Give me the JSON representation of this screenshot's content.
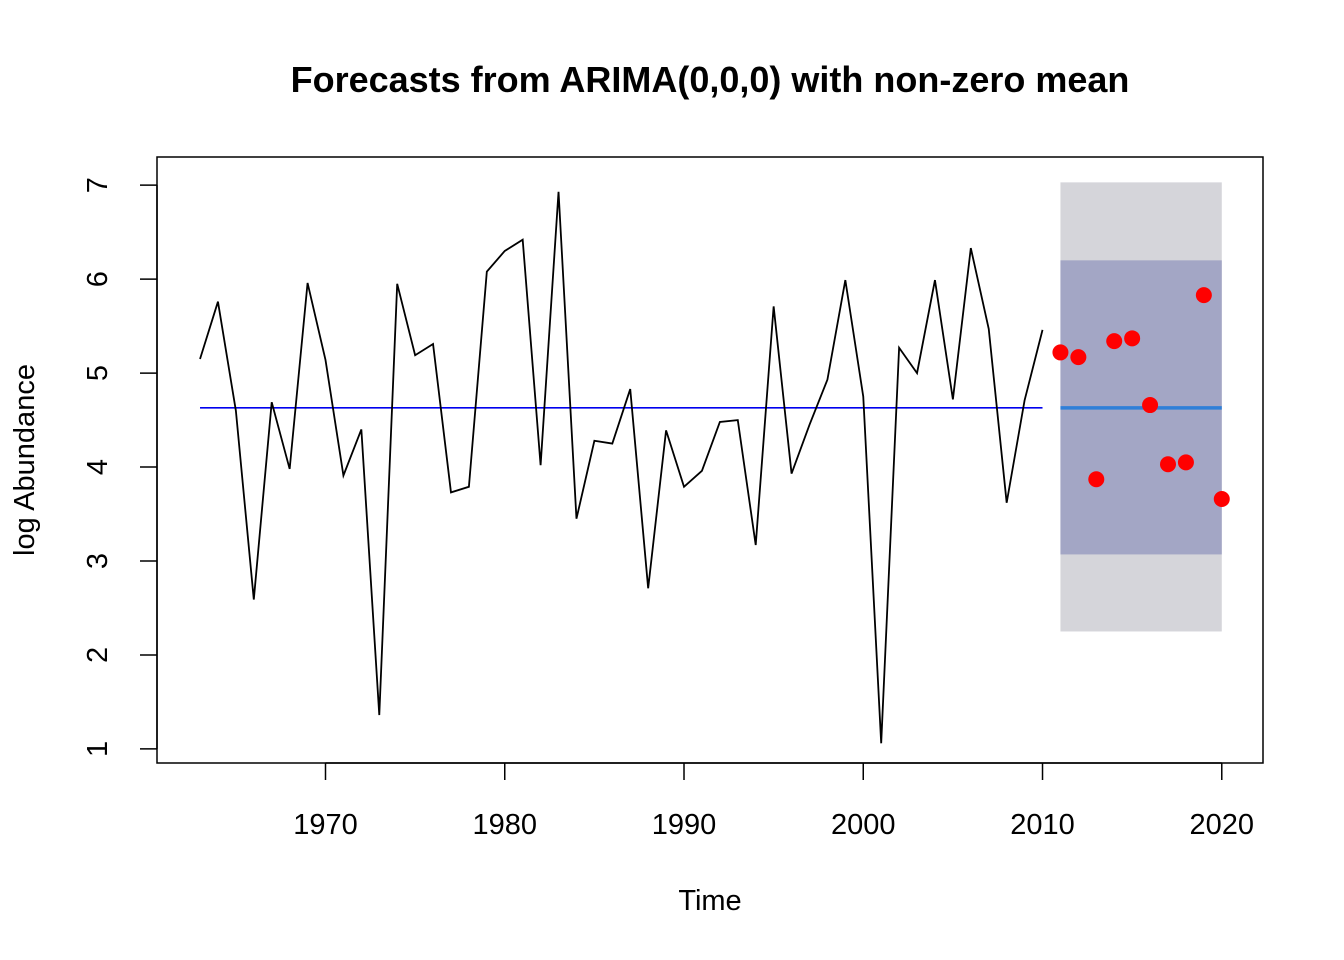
{
  "chart_data": {
    "type": "line",
    "title": "Forecasts from ARIMA(0,0,0) with non-zero mean",
    "xlabel": "Time",
    "ylabel": "log Abundance",
    "xlim": [
      1960.6,
      2022.3
    ],
    "ylim": [
      0.85,
      7.3
    ],
    "x_ticks": [
      1970,
      1980,
      1990,
      2000,
      2010,
      2020
    ],
    "y_ticks": [
      1,
      2,
      3,
      4,
      5,
      6,
      7
    ],
    "grid": false,
    "legend": "none",
    "observed": {
      "x": [
        1963,
        1964,
        1965,
        1966,
        1967,
        1968,
        1969,
        1970,
        1971,
        1972,
        1973,
        1974,
        1975,
        1976,
        1977,
        1978,
        1979,
        1980,
        1981,
        1982,
        1983,
        1984,
        1985,
        1986,
        1987,
        1988,
        1989,
        1990,
        1991,
        1992,
        1993,
        1994,
        1995,
        1996,
        1997,
        1998,
        1999,
        2000,
        2001,
        2002,
        2003,
        2004,
        2005,
        2006,
        2007,
        2008,
        2009,
        2010
      ],
      "y": [
        5.15,
        5.76,
        4.6,
        2.59,
        4.69,
        3.98,
        5.96,
        5.14,
        3.91,
        4.4,
        1.36,
        5.95,
        5.19,
        5.31,
        3.73,
        3.79,
        6.08,
        6.3,
        6.42,
        4.02,
        6.93,
        3.45,
        4.28,
        4.25,
        4.83,
        2.71,
        4.39,
        3.79,
        3.96,
        4.48,
        4.5,
        3.17,
        5.71,
        3.93,
        4.45,
        4.93,
        5.99,
        4.75,
        1.06,
        5.27,
        5.0,
        5.99,
        4.72,
        6.33,
        5.47,
        3.62,
        4.71,
        5.46
      ]
    },
    "fitted_mean": {
      "x_start": 1963,
      "x_end": 2010,
      "y": 4.63,
      "color": "#0000ee"
    },
    "forecast": {
      "x_start": 2011,
      "x_end": 2020,
      "mean": 4.63,
      "mean_color": "#2f7fd8",
      "pi80": [
        3.07,
        6.2
      ],
      "pi95": [
        2.25,
        7.03
      ],
      "pi80_color": "#a3a6c5",
      "pi95_color": "#d5d5da"
    },
    "test_points": {
      "color": "#ff0000",
      "x": [
        2011,
        2012,
        2013,
        2014,
        2015,
        2016,
        2017,
        2018,
        2019,
        2020
      ],
      "y": [
        5.22,
        5.17,
        3.87,
        5.34,
        5.37,
        4.66,
        4.03,
        4.05,
        5.83,
        3.66
      ]
    },
    "line_color": "#000000"
  }
}
